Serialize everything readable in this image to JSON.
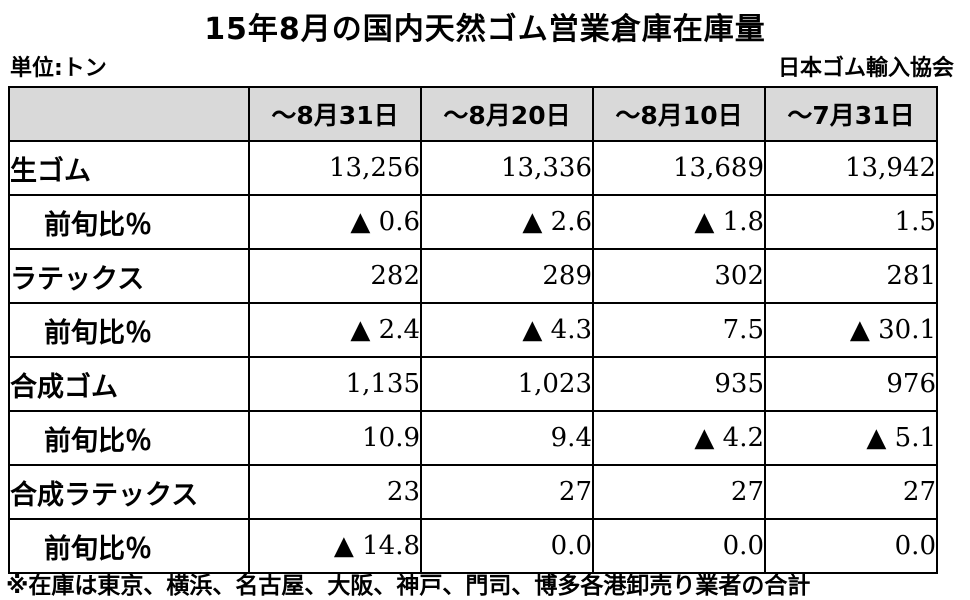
{
  "title": "15年8月の国内天然ゴム営業倉庫在庫量",
  "unit_label": "単位:トン",
  "source": "日本ゴム輸入協会",
  "table": {
    "columns": [
      "〜8月31日",
      "〜8月20日",
      "〜8月10日",
      "〜7月31日"
    ],
    "rows": [
      {
        "label": "生ゴム",
        "sub": false,
        "values": [
          "13,256",
          "13,336",
          "13,689",
          "13,942"
        ]
      },
      {
        "label": "前旬比％",
        "sub": true,
        "values": [
          "▲ 0.6",
          "▲ 2.6",
          "▲ 1.8",
          "1.5"
        ]
      },
      {
        "label": "ラテックス",
        "sub": false,
        "values": [
          "282",
          "289",
          "302",
          "281"
        ]
      },
      {
        "label": "前旬比％",
        "sub": true,
        "values": [
          "▲ 2.4",
          "▲ 4.3",
          "7.5",
          "▲ 30.1"
        ]
      },
      {
        "label": "合成ゴム",
        "sub": false,
        "values": [
          "1,135",
          "1,023",
          "935",
          "976"
        ]
      },
      {
        "label": "前旬比％",
        "sub": true,
        "values": [
          "10.9",
          "9.4",
          "▲ 4.2",
          "▲ 5.1"
        ]
      },
      {
        "label": "合成ラテックス",
        "sub": false,
        "values": [
          "23",
          "27",
          "27",
          "27"
        ]
      },
      {
        "label": "前旬比％",
        "sub": true,
        "values": [
          "▲ 14.8",
          "0.0",
          "0.0",
          "0.0"
        ]
      }
    ]
  },
  "footnote": "※在庫は東京、横浜、名古屋、大阪、神戸、門司、博多各港卸売り業者の合計"
}
